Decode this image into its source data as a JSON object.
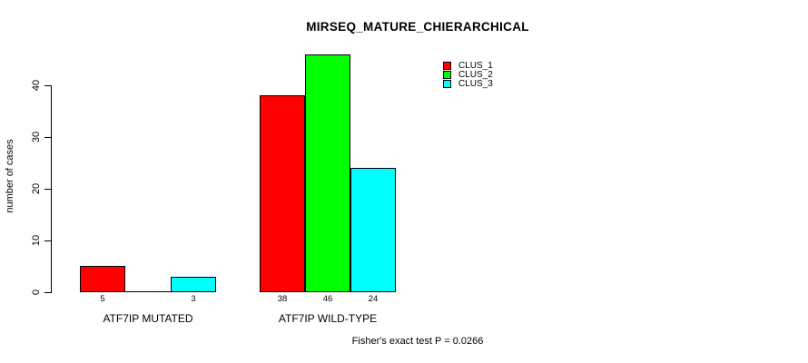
{
  "chart_data": {
    "type": "bar",
    "title": "MIRSEQ_MATURE_CHIERARCHICAL",
    "xlabel": "",
    "ylabel": "number of cases",
    "categories": [
      "ATF7IP MUTATED",
      "ATF7IP WILD-TYPE"
    ],
    "series": [
      {
        "name": "CLUS_1",
        "color": "#ff0000",
        "values": [
          5,
          38
        ]
      },
      {
        "name": "CLUS_2",
        "color": "#00ff00",
        "values": [
          0,
          46
        ]
      },
      {
        "name": "CLUS_3",
        "color": "#00ffff",
        "values": [
          3,
          24
        ]
      }
    ],
    "bar_labels": [
      [
        "5",
        "",
        "3"
      ],
      [
        "38",
        "46",
        "24"
      ]
    ],
    "ylim": [
      0,
      46
    ],
    "yticks": [
      0,
      10,
      20,
      30,
      40
    ],
    "grid": false,
    "legend_position": "top-right",
    "annotation": "Fisher's exact test P = 0.0266"
  }
}
